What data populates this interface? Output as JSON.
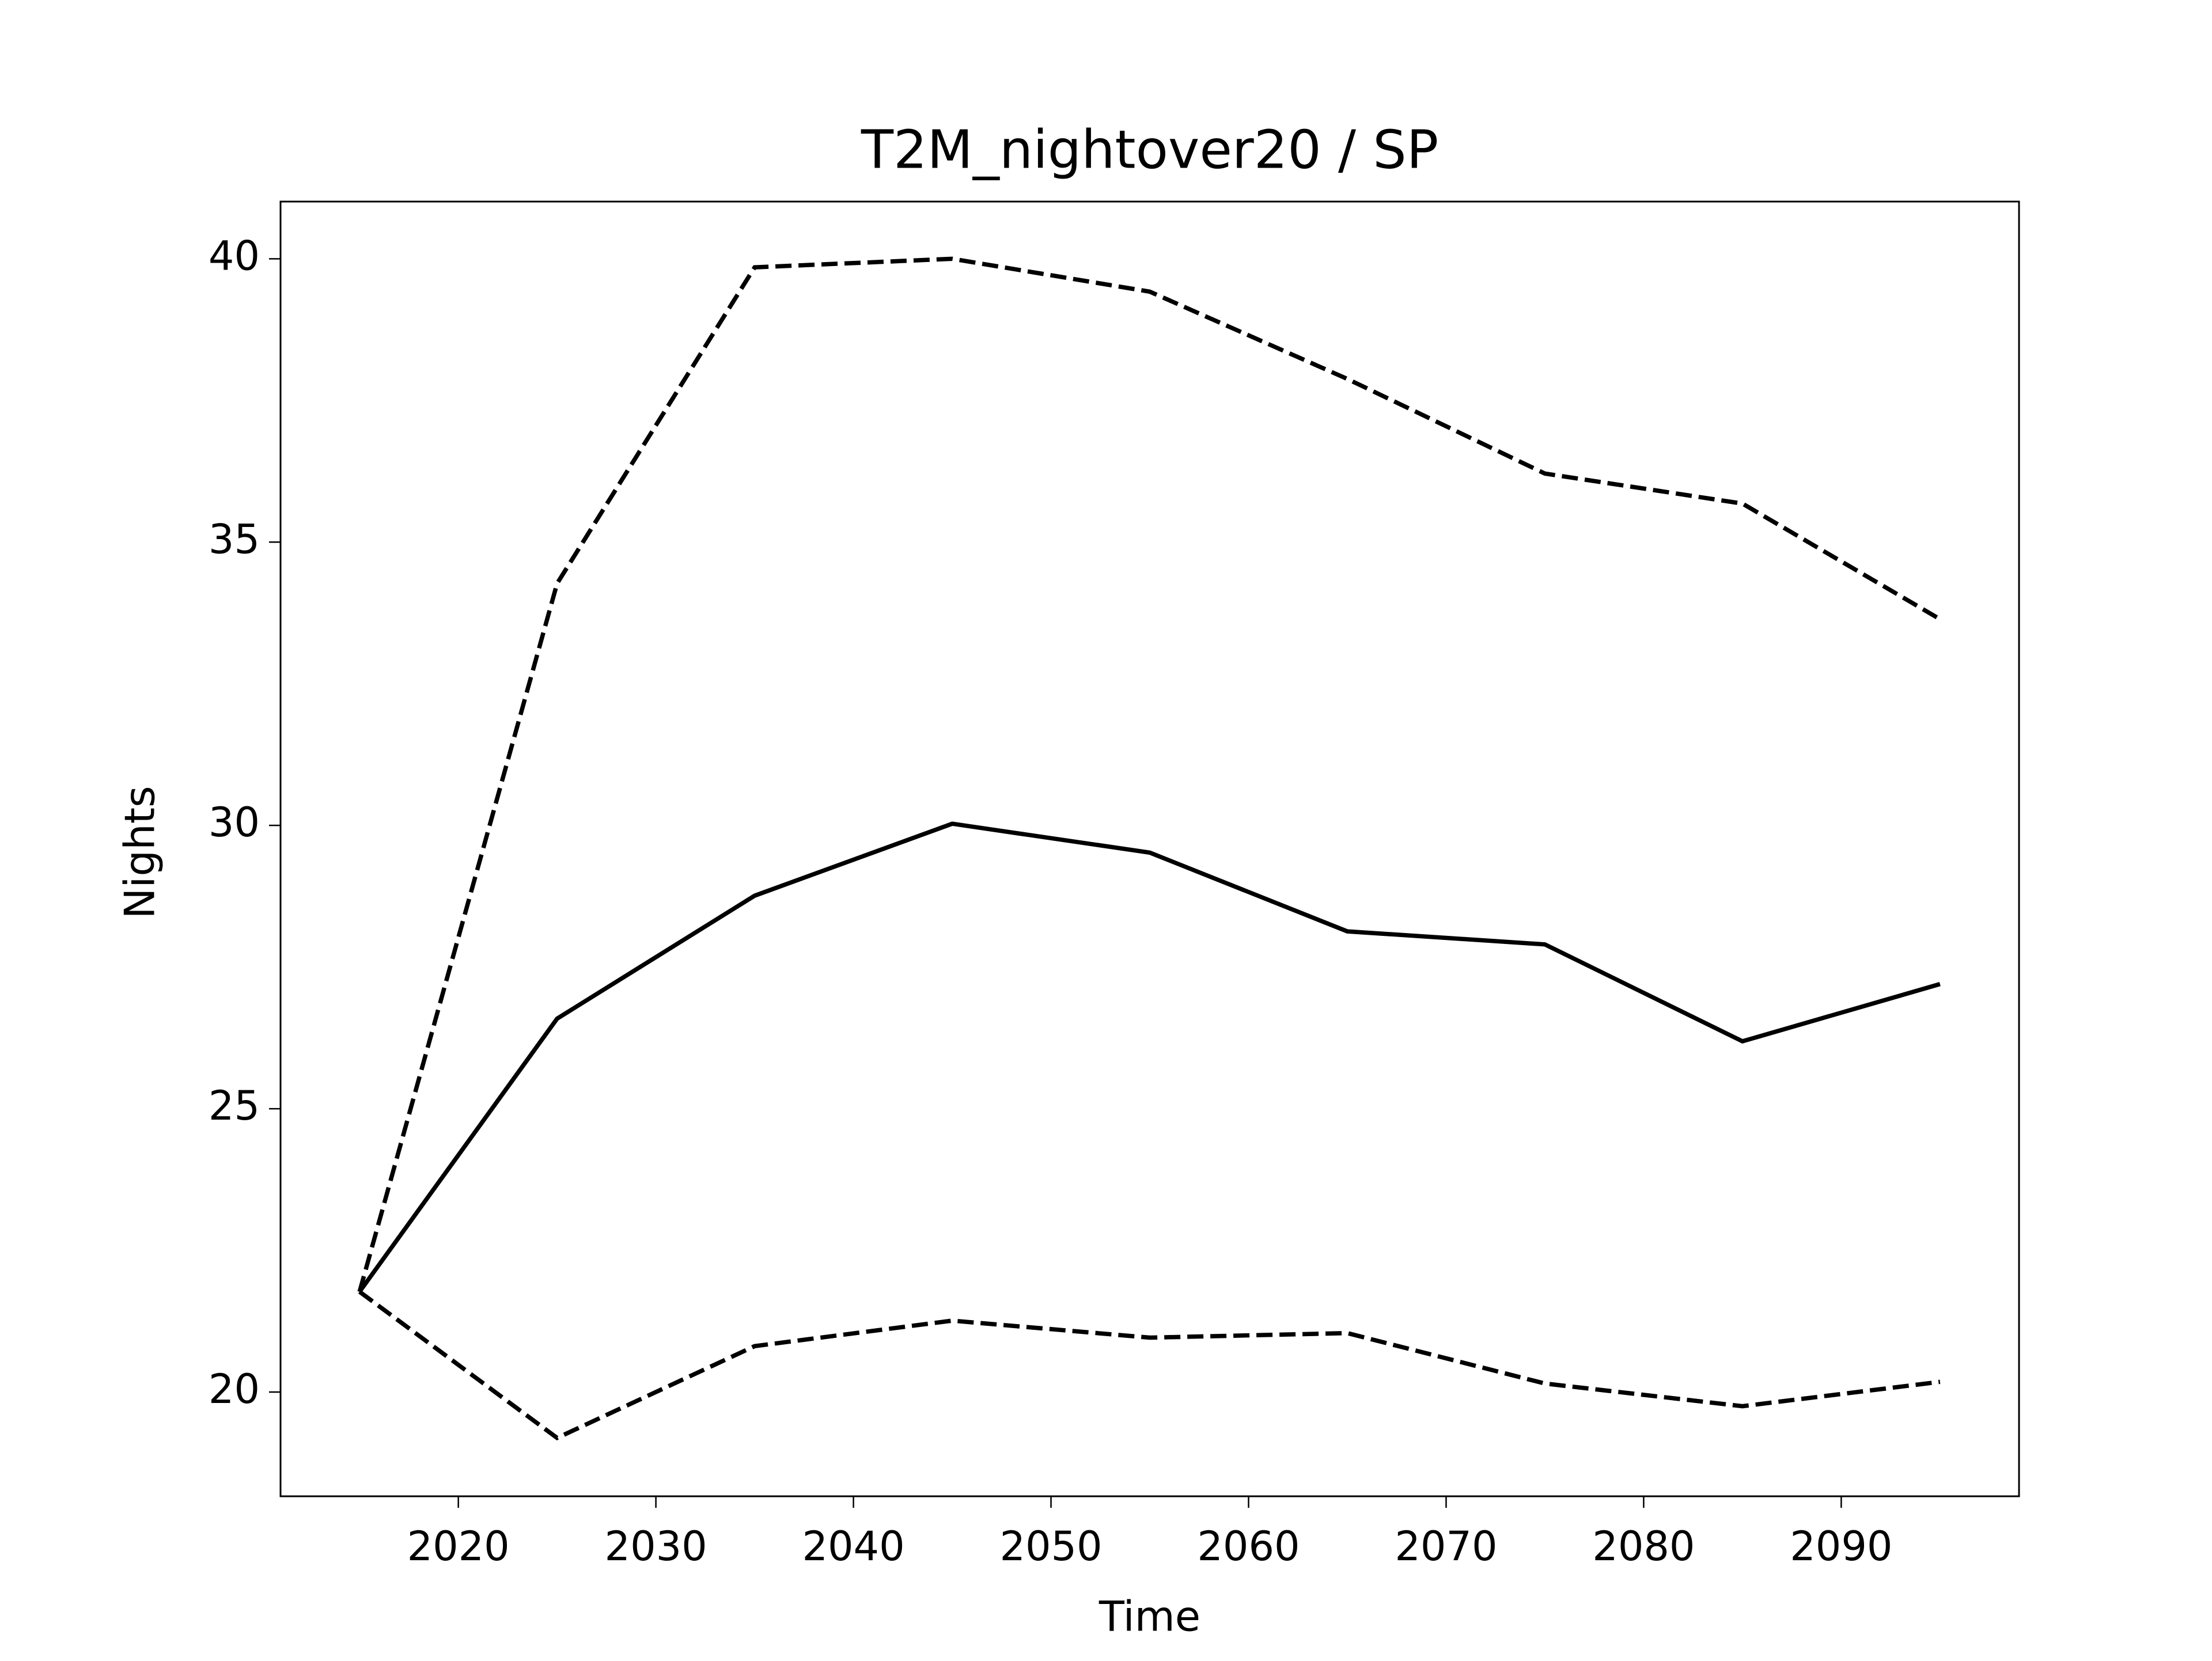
{
  "chart_data": {
    "type": "line",
    "title": "T2M_nightover20 / SP",
    "x_label": "Time",
    "y_label": "Nights",
    "x": [
      2015,
      2025,
      2035,
      2045,
      2055,
      2065,
      2075,
      2085,
      2095
    ],
    "series": [
      {
        "color": "#000000",
        "linestyle": "solid",
        "values": [
          21.77,
          26.59,
          28.76,
          30.03,
          29.52,
          28.13,
          27.9,
          26.19,
          27.2
        ]
      },
      {
        "color": "#000000",
        "linestyle": "dashed",
        "values": [
          21.77,
          34.27,
          39.85,
          40.0,
          39.42,
          37.88,
          36.21,
          35.68,
          33.64
        ]
      },
      {
        "color": "#000000",
        "linestyle": "dashed",
        "values": [
          21.77,
          19.19,
          20.81,
          21.26,
          20.96,
          21.04,
          20.15,
          19.75,
          20.18
        ]
      }
    ],
    "xlim": [
      2011,
      2099
    ],
    "ylim": [
      18.16,
      41.01
    ],
    "xticks": [
      2020,
      2030,
      2040,
      2050,
      2060,
      2070,
      2080,
      2090
    ],
    "yticks": [
      20,
      25,
      30,
      35,
      40
    ],
    "grid": false
  }
}
